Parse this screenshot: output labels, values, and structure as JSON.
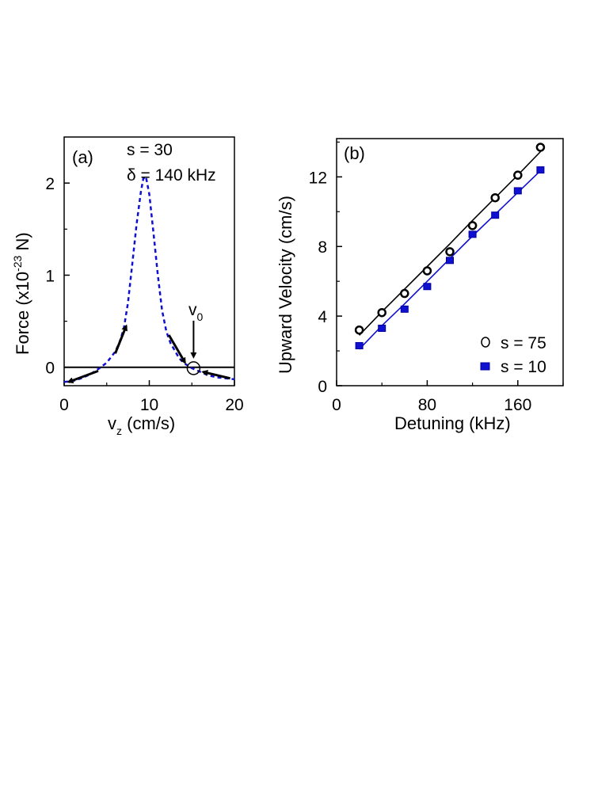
{
  "chart_data": [
    {
      "type": "line",
      "panel_label": "(a)",
      "annotation_lines": [
        "s = 30",
        "δ = 140 kHz"
      ],
      "marker_label": {
        "main": "v",
        "sub": "0"
      },
      "xlabel": {
        "main": "v",
        "sub": "z",
        "rest": " (cm/s)"
      },
      "ylabel": {
        "pre": "Force (x10",
        "sup": "-23",
        "post": " N)"
      },
      "xlim": [
        0,
        20
      ],
      "ylim": [
        -0.2,
        2.5
      ],
      "xticks": [
        0,
        10,
        20
      ],
      "yticks": [
        0,
        1,
        2
      ],
      "series": [
        {
          "name": "force",
          "color": "#1010d0",
          "style": "dashed",
          "x": [
            0,
            1,
            2,
            3,
            4,
            5,
            6,
            6.5,
            7,
            7.5,
            8,
            8.5,
            9,
            9.3,
            9.6,
            10,
            10.5,
            11,
            11.5,
            12,
            12.5,
            13,
            13.5,
            14,
            14.5,
            15,
            16,
            17,
            18,
            19,
            20
          ],
          "y": [
            -0.16,
            -0.15,
            -0.12,
            -0.08,
            -0.02,
            0.05,
            0.17,
            0.27,
            0.42,
            0.7,
            1.12,
            1.55,
            1.9,
            2.05,
            2.07,
            1.88,
            1.45,
            1.0,
            0.62,
            0.39,
            0.26,
            0.18,
            0.1,
            0.05,
            0.02,
            -0.01,
            -0.05,
            -0.09,
            -0.11,
            -0.12,
            -0.13
          ]
        }
      ],
      "zero_line": 0,
      "v0": {
        "x": 15.2,
        "y": -0.01
      },
      "flow_arrows": [
        {
          "from": [
            4,
            -0.04
          ],
          "to": [
            0.5,
            -0.16
          ]
        },
        {
          "from": [
            6,
            0.15
          ],
          "to": [
            7.3,
            0.45
          ]
        },
        {
          "from": [
            12.3,
            0.35
          ],
          "to": [
            14.2,
            0.05
          ]
        },
        {
          "from": [
            19.5,
            -0.12
          ],
          "to": [
            16.3,
            -0.05
          ]
        }
      ]
    },
    {
      "type": "scatter",
      "panel_label": "(b)",
      "xlabel": "Detuning (kHz)",
      "ylabel": "Upward Velocity (cm/s)",
      "xlim": [
        0,
        200
      ],
      "ylim": [
        0,
        14.2
      ],
      "xticks": [
        0,
        80,
        160
      ],
      "yticks": [
        0,
        4,
        8,
        12
      ],
      "legend": [
        {
          "name": "s = 75",
          "color": "#000000",
          "marker": "open-circle"
        },
        {
          "name": "s = 10",
          "color": "#1010d0",
          "marker": "filled-square"
        }
      ],
      "series": [
        {
          "name": "s = 75",
          "color": "#000000",
          "x": [
            20,
            40,
            60,
            80,
            100,
            120,
            140,
            160,
            180
          ],
          "y": [
            3.2,
            4.2,
            5.3,
            6.6,
            7.7,
            9.2,
            10.8,
            12.1,
            13.7
          ],
          "fit_y": [
            2.9,
            4.25,
            5.55,
            6.85,
            8.15,
            9.5,
            10.8,
            12.1,
            13.45
          ]
        },
        {
          "name": "s = 10",
          "color": "#1010d0",
          "x": [
            20,
            40,
            60,
            80,
            100,
            120,
            140,
            160,
            180
          ],
          "y": [
            2.3,
            3.3,
            4.4,
            5.7,
            7.2,
            8.7,
            9.8,
            11.2,
            12.4
          ],
          "fit_y": [
            2.1,
            3.45,
            4.7,
            6.0,
            7.3,
            8.6,
            9.85,
            11.1,
            12.35
          ]
        }
      ]
    }
  ]
}
